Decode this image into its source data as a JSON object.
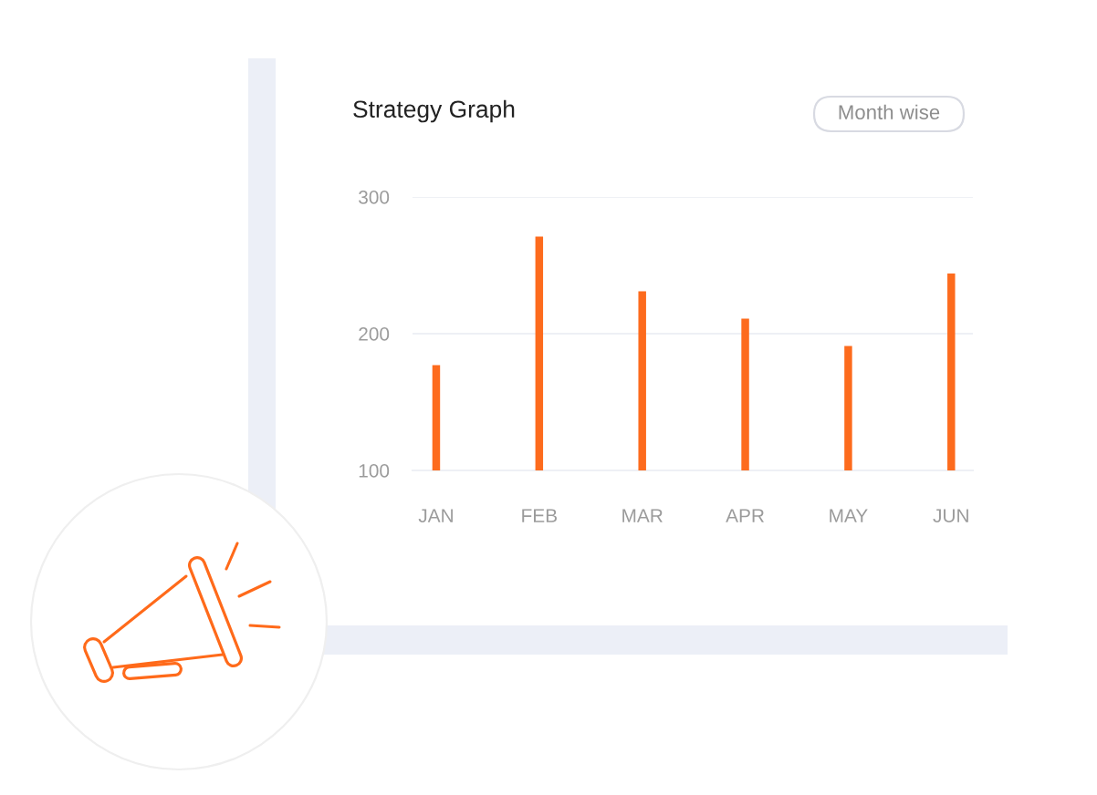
{
  "chart_data": {
    "type": "bar",
    "title": "Strategy Graph",
    "annotations": [
      "Month wise"
    ],
    "categories": [
      "JAN",
      "FEB",
      "MAR",
      "APR",
      "MAY",
      "JUN"
    ],
    "values": [
      177,
      271,
      231,
      211,
      191,
      244
    ],
    "color": "#fd6b1d",
    "ylim": [
      100,
      300
    ],
    "yticks": [
      100,
      200,
      300
    ],
    "grid": "y"
  }
}
